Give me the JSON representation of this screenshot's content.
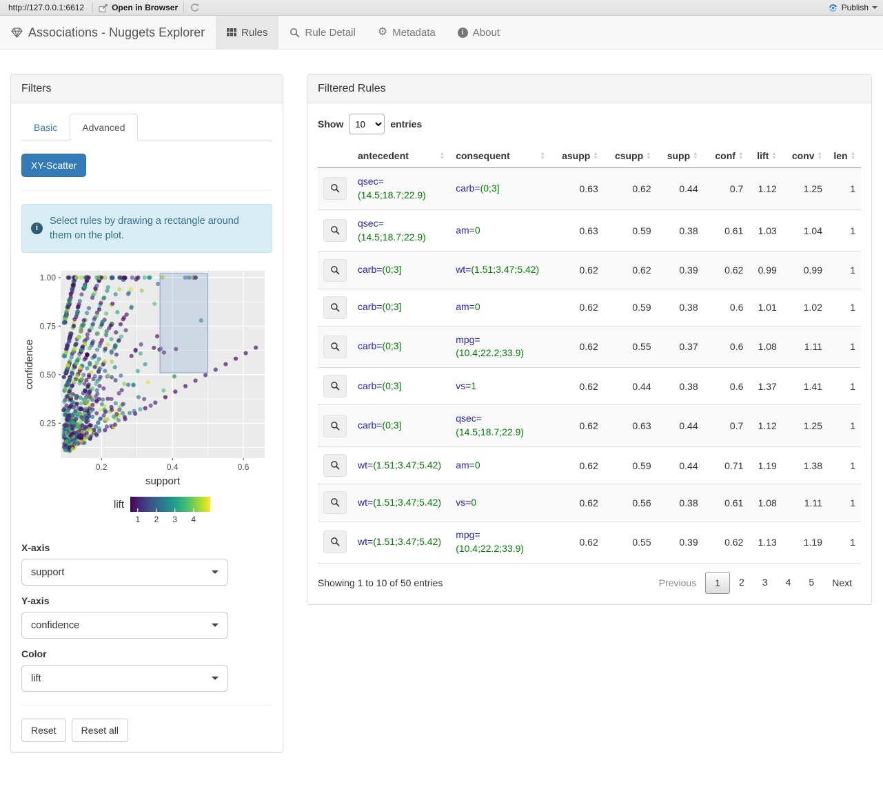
{
  "viewer_toolbar": {
    "url": "http://127.0.0.1:6612",
    "open_in_browser": "Open in Browser",
    "publish": "Publish"
  },
  "navbar": {
    "brand": "Associations - Nuggets Explorer",
    "tabs": [
      {
        "label": "Rules",
        "icon": "table-icon",
        "active": true
      },
      {
        "label": "Rule Detail",
        "icon": "search-icon",
        "active": false
      },
      {
        "label": "Metadata",
        "icon": "gear-icon",
        "active": false
      },
      {
        "label": "About",
        "icon": "info-icon",
        "active": false
      }
    ]
  },
  "filters_panel": {
    "title": "Filters",
    "tabs": [
      {
        "label": "Basic",
        "active": false
      },
      {
        "label": "Advanced",
        "active": true
      }
    ],
    "scatter_button": "XY-Scatter",
    "info_alert": "Select rules by drawing a rectangle around them on the plot.",
    "controls": [
      {
        "label": "X-axis",
        "value": "support"
      },
      {
        "label": "Y-axis",
        "value": "confidence"
      },
      {
        "label": "Color",
        "value": "lift"
      }
    ],
    "reset_button": "Reset",
    "reset_all_button": "Reset all"
  },
  "chart_data": {
    "type": "scatter",
    "xlabel": "support",
    "ylabel": "confidence",
    "xlim": [
      0.085,
      0.66
    ],
    "ylim": [
      0.07,
      1.035
    ],
    "x_ticks": [
      0.2,
      0.4,
      0.6
    ],
    "x_minor_ticks": [
      0.1,
      0.3,
      0.5
    ],
    "y_ticks": [
      0.25,
      0.5,
      0.75,
      1.0
    ],
    "y_minor_ticks": [
      0.125,
      0.375,
      0.625,
      0.875
    ],
    "grid": true,
    "legend_position": "bottom",
    "color_legend": {
      "label": "lift",
      "palette": "viridis",
      "tick_values": [
        1,
        2,
        3,
        4
      ],
      "range": [
        0.6,
        4.9
      ]
    },
    "selection_rect": {
      "x0": 0.365,
      "x1": 0.5,
      "y0": 0.51,
      "y1": 1.02
    },
    "point_generation": {
      "seed": 11,
      "n_points": 980,
      "top_line_points": 28,
      "diagonal_line_points": 16,
      "diagonal_x0": 0.21,
      "diagonal_x1": 0.635
    }
  },
  "rules_panel": {
    "title": "Filtered Rules",
    "show_label": "Show",
    "entries_label": "entries",
    "page_length": "10",
    "columns": [
      "",
      "antecedent",
      "consequent",
      "asupp",
      "csupp",
      "supp",
      "conf",
      "lift",
      "conv",
      "len"
    ],
    "rows": [
      {
        "antecedent": {
          "attr": "qsec",
          "value": "(14.5;18.7;22.9)"
        },
        "consequent": {
          "attr": "carb",
          "value": "(0;3]"
        },
        "asupp": "0.63",
        "csupp": "0.62",
        "supp": "0.44",
        "conf": "0.7",
        "lift": "1.12",
        "conv": "1.25",
        "len": "1"
      },
      {
        "antecedent": {
          "attr": "qsec",
          "value": "(14.5;18.7;22.9)"
        },
        "consequent": {
          "attr": "am",
          "value": "0"
        },
        "asupp": "0.63",
        "csupp": "0.59",
        "supp": "0.38",
        "conf": "0.61",
        "lift": "1.03",
        "conv": "1.04",
        "len": "1"
      },
      {
        "antecedent": {
          "attr": "carb",
          "value": "(0;3]"
        },
        "consequent": {
          "attr": "wt",
          "value": "(1.51;3.47;5.42)"
        },
        "asupp": "0.62",
        "csupp": "0.62",
        "supp": "0.39",
        "conf": "0.62",
        "lift": "0.99",
        "conv": "0.99",
        "len": "1"
      },
      {
        "antecedent": {
          "attr": "carb",
          "value": "(0;3]"
        },
        "consequent": {
          "attr": "am",
          "value": "0"
        },
        "asupp": "0.62",
        "csupp": "0.59",
        "supp": "0.38",
        "conf": "0.6",
        "lift": "1.01",
        "conv": "1.02",
        "len": "1"
      },
      {
        "antecedent": {
          "attr": "carb",
          "value": "(0;3]"
        },
        "consequent": {
          "attr": "mpg",
          "value": "(10.4;22.2;33.9)"
        },
        "asupp": "0.62",
        "csupp": "0.55",
        "supp": "0.37",
        "conf": "0.6",
        "lift": "1.08",
        "conv": "1.11",
        "len": "1"
      },
      {
        "antecedent": {
          "attr": "carb",
          "value": "(0;3]"
        },
        "consequent": {
          "attr": "vs",
          "value": "1"
        },
        "asupp": "0.62",
        "csupp": "0.44",
        "supp": "0.38",
        "conf": "0.6",
        "lift": "1.37",
        "conv": "1.41",
        "len": "1"
      },
      {
        "antecedent": {
          "attr": "carb",
          "value": "(0;3]"
        },
        "consequent": {
          "attr": "qsec",
          "value": "(14.5;18.7;22.9)"
        },
        "asupp": "0.62",
        "csupp": "0.63",
        "supp": "0.44",
        "conf": "0.7",
        "lift": "1.12",
        "conv": "1.25",
        "len": "1"
      },
      {
        "antecedent": {
          "attr": "wt",
          "value": "(1.51;3.47;5.42)"
        },
        "consequent": {
          "attr": "am",
          "value": "0"
        },
        "asupp": "0.62",
        "csupp": "0.59",
        "supp": "0.44",
        "conf": "0.71",
        "lift": "1.19",
        "conv": "1.38",
        "len": "1"
      },
      {
        "antecedent": {
          "attr": "wt",
          "value": "(1.51;3.47;5.42)"
        },
        "consequent": {
          "attr": "vs",
          "value": "0"
        },
        "asupp": "0.62",
        "csupp": "0.56",
        "supp": "0.38",
        "conf": "0.61",
        "lift": "1.08",
        "conv": "1.11",
        "len": "1"
      },
      {
        "antecedent": {
          "attr": "wt",
          "value": "(1.51;3.47;5.42)"
        },
        "consequent": {
          "attr": "mpg",
          "value": "(10.4;22.2;33.9)"
        },
        "asupp": "0.62",
        "csupp": "0.55",
        "supp": "0.39",
        "conf": "0.62",
        "lift": "1.13",
        "conv": "1.19",
        "len": "1"
      }
    ],
    "footer": {
      "info": "Showing 1 to 10 of 50 entries",
      "previous": "Previous",
      "pages": [
        "1",
        "2",
        "3",
        "4",
        "5"
      ],
      "current_page": "1",
      "next": "Next"
    }
  },
  "colors": {
    "accent": "#337ab7",
    "attr_text": "#2222b8",
    "value_text": "#008000",
    "alert_bg": "#d9edf7",
    "alert_border": "#bce8f1",
    "alert_text": "#31708f",
    "plot_bg": "#ebebeb",
    "selection_fill": "rgba(120,160,210,0.25)",
    "selection_stroke": "#7e9fc4"
  }
}
